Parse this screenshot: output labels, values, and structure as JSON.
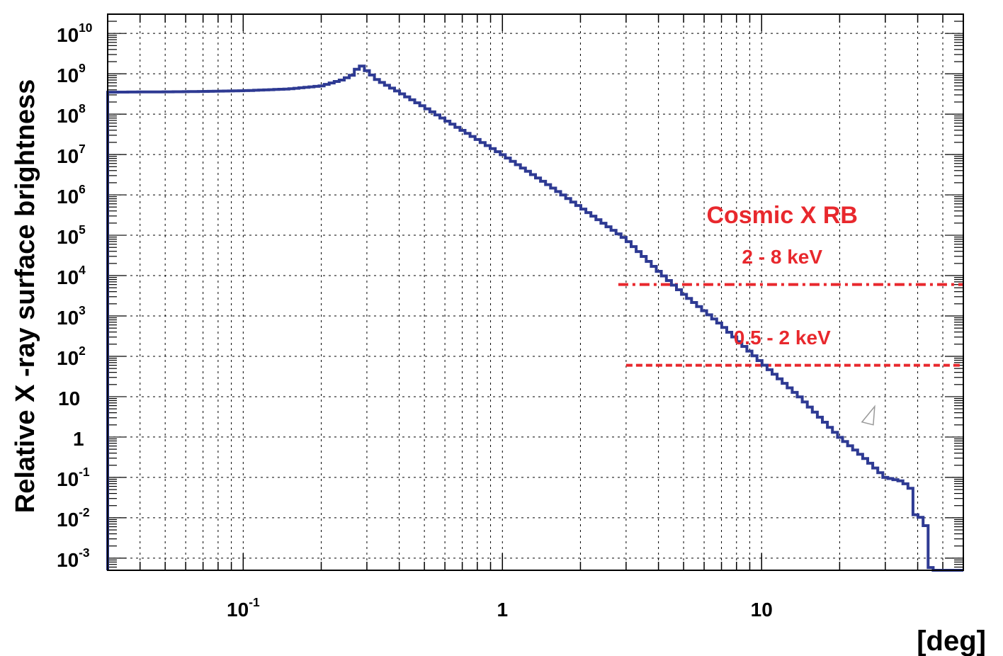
{
  "chart_data": {
    "type": "line",
    "xlabel": "[deg]",
    "ylabel": "Relative X -ray  surface  brightness",
    "x_scale": "log",
    "y_scale": "log",
    "xlim": [
      0.03,
      60
    ],
    "ylim": [
      0.0005,
      30000000000
    ],
    "grid": true,
    "x_ticks": [
      {
        "value": 0.1,
        "base": "10",
        "exp": "-1"
      },
      {
        "value": 1,
        "base": "1",
        "exp": ""
      },
      {
        "value": 10,
        "base": "10",
        "exp": ""
      }
    ],
    "y_ticks": [
      {
        "value": 10000000000,
        "base": "10",
        "exp": "10"
      },
      {
        "value": 1000000000,
        "base": "10",
        "exp": "9"
      },
      {
        "value": 100000000,
        "base": "10",
        "exp": "8"
      },
      {
        "value": 10000000,
        "base": "10",
        "exp": "7"
      },
      {
        "value": 1000000,
        "base": "10",
        "exp": "6"
      },
      {
        "value": 100000,
        "base": "10",
        "exp": "5"
      },
      {
        "value": 10000,
        "base": "10",
        "exp": "4"
      },
      {
        "value": 1000,
        "base": "10",
        "exp": "3"
      },
      {
        "value": 100,
        "base": "10",
        "exp": "2"
      },
      {
        "value": 10,
        "base": "10",
        "exp": ""
      },
      {
        "value": 1,
        "base": "1",
        "exp": ""
      },
      {
        "value": 0.1,
        "base": "10",
        "exp": "-1"
      },
      {
        "value": 0.01,
        "base": "10",
        "exp": "-2"
      },
      {
        "value": 0.001,
        "base": "10",
        "exp": "-3"
      }
    ],
    "series": [
      {
        "color": "#2e3a93",
        "style": "step",
        "points": [
          [
            0.03,
            350000000
          ],
          [
            0.06,
            360000000
          ],
          [
            0.1,
            380000000
          ],
          [
            0.15,
            420000000
          ],
          [
            0.2,
            500000000
          ],
          [
            0.24,
            700000000
          ],
          [
            0.27,
            1000000000
          ],
          [
            0.28,
            1800000000
          ],
          [
            0.3,
            1200000000
          ],
          [
            0.33,
            700000000
          ],
          [
            0.4,
            350000000
          ],
          [
            0.5,
            150000000
          ],
          [
            0.7,
            40000000
          ],
          [
            1,
            10000000
          ],
          [
            1.5,
            1800000
          ],
          [
            2,
            500000
          ],
          [
            3,
            80000
          ],
          [
            4,
            13000
          ],
          [
            5,
            3500
          ],
          [
            7,
            600
          ],
          [
            10,
            70
          ],
          [
            14,
            10
          ],
          [
            20,
            1
          ],
          [
            25,
            0.3
          ],
          [
            30,
            0.1
          ],
          [
            35,
            0.08
          ],
          [
            38,
            0.05
          ],
          [
            40,
            0.005
          ],
          [
            42,
            0.02
          ],
          [
            45,
            0.0005
          ],
          [
            60,
            0.0005
          ]
        ]
      }
    ],
    "annotations": [
      {
        "text": "Cosmic X RB",
        "x": 12,
        "y": 200000
      },
      {
        "text": "2  -  8  keV",
        "x": 12,
        "y": 20000
      },
      {
        "text": "0.5  -  2  keV",
        "x": 12,
        "y": 200
      }
    ],
    "reference_lines": [
      {
        "label": "2 - 8 keV",
        "y": 6000,
        "x_from": 2.8,
        "x_to": 60,
        "color": "#e8282d",
        "style": "dash-dot"
      },
      {
        "label": "0.5 - 2 keV",
        "y": 60,
        "x_from": 3,
        "x_to": 60,
        "color": "#e8282d",
        "style": "dashed"
      }
    ],
    "marker": {
      "shape": "open-triangle",
      "x": 25,
      "y": 3
    }
  }
}
